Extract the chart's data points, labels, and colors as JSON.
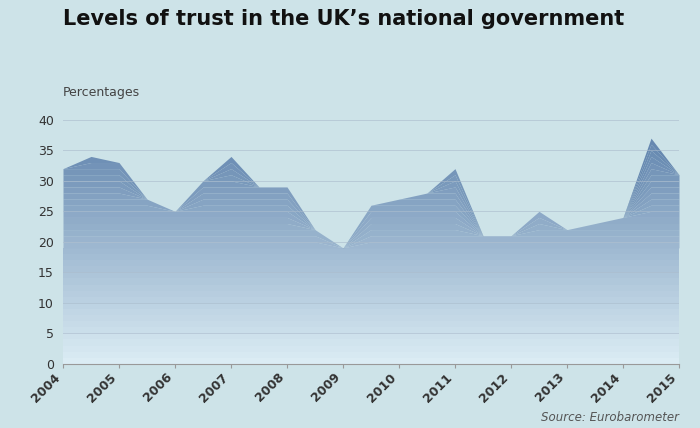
{
  "title": "Levels of trust in the UK’s national government",
  "subtitle": "Percentages",
  "source": "Source: Eurobarometer",
  "background_color": "#cde3e8",
  "plot_bg_color": "#cde3e8",
  "x_values": [
    2004.0,
    2004.5,
    2005.0,
    2005.5,
    2006.0,
    2006.5,
    2007.0,
    2007.5,
    2008.0,
    2008.5,
    2009.0,
    2009.5,
    2010.0,
    2010.5,
    2011.0,
    2011.5,
    2012.0,
    2012.5,
    2013.0,
    2013.5,
    2014.0,
    2014.5,
    2015.0
  ],
  "y_values": [
    32,
    34,
    33,
    27,
    25,
    30,
    34,
    29,
    29,
    22,
    19,
    26,
    27,
    28,
    32,
    21,
    21,
    25,
    22,
    23,
    24,
    37,
    31
  ],
  "ylim": [
    0,
    40
  ],
  "xlim": [
    2004.0,
    2015.0
  ],
  "yticks": [
    0,
    5,
    10,
    15,
    20,
    25,
    30,
    35,
    40
  ],
  "xticks": [
    2004,
    2005,
    2006,
    2007,
    2008,
    2009,
    2010,
    2011,
    2012,
    2013,
    2014,
    2015
  ],
  "fill_color_top": "#5b7faa",
  "fill_color_bottom": "#ddeef5",
  "line_color": "#4a6a90",
  "title_fontsize": 15,
  "subtitle_fontsize": 9,
  "source_fontsize": 8.5,
  "tick_fontsize": 9,
  "grid_color": "#aabbcc",
  "grid_alpha": 0.6
}
